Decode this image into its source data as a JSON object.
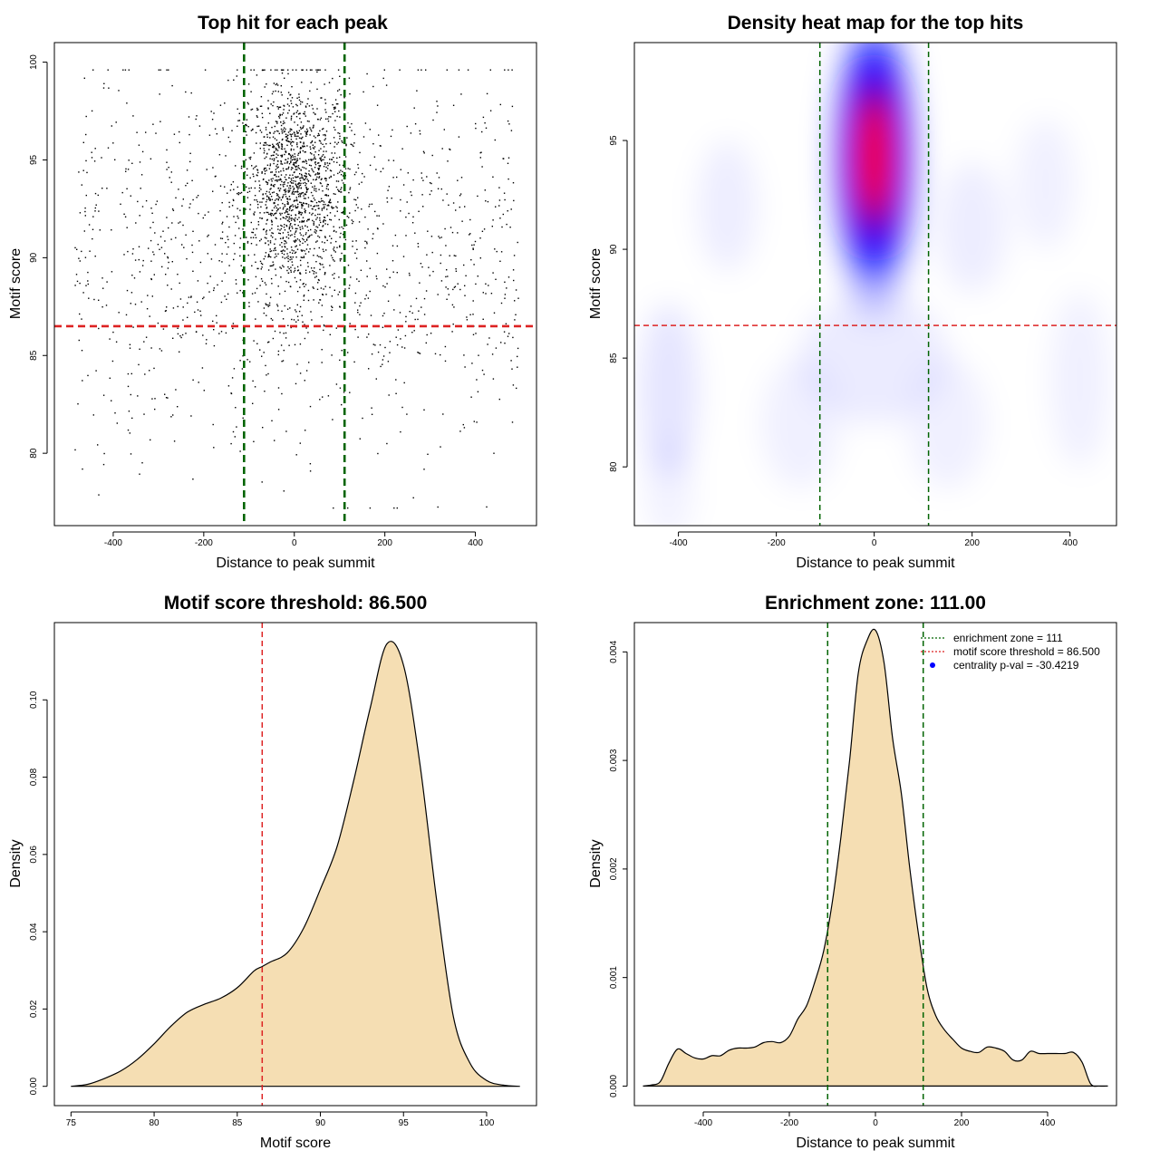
{
  "chart_data": [
    {
      "id": "scatter",
      "type": "scatter",
      "title": "Top hit for each peak",
      "xlabel": "Distance to peak summit",
      "ylabel": "Motif score",
      "xlim": [
        -530,
        535
      ],
      "ylim": [
        76.3,
        101.0
      ],
      "xticks": [
        -400,
        -200,
        0,
        200,
        400
      ],
      "yticks": [
        80,
        85,
        90,
        95,
        100
      ],
      "point_color": "#000000",
      "reference_lines": [
        {
          "orientation": "vertical",
          "value": -111,
          "color": "#006400",
          "style": "dashed"
        },
        {
          "orientation": "vertical",
          "value": 111,
          "color": "#006400",
          "style": "dashed"
        },
        {
          "orientation": "horizontal",
          "value": 86.5,
          "color": "#dd2222",
          "style": "dashed"
        }
      ],
      "distribution": {
        "count": 2600,
        "x_range": [
          -485,
          495
        ],
        "y_range": [
          77.2,
          99.6
        ],
        "core": {
          "x_mean": 0,
          "x_sd": 60,
          "y_mean": 93.5,
          "y_sd": 2.8,
          "weight": 0.58
        },
        "background": {
          "y_mean": 90,
          "y_sd": 5,
          "weight": 0.42
        }
      }
    },
    {
      "id": "heatmap",
      "type": "heatmap",
      "title": "Density heat map for the top hits",
      "xlabel": "Distance to peak summit",
      "ylabel": "Motif score",
      "xlim": [
        -490,
        495
      ],
      "ylim": [
        77.3,
        99.5
      ],
      "xticks": [
        -400,
        -200,
        0,
        200,
        400
      ],
      "yticks": [
        80,
        85,
        90,
        95
      ],
      "colors": {
        "low": "#ffffff",
        "mid": "#0000ff",
        "high": "#ff0000"
      },
      "peak": {
        "x": 0,
        "y": 94.2
      },
      "reference_lines": [
        {
          "orientation": "vertical",
          "value": -111,
          "color": "#006400",
          "style": "dashed"
        },
        {
          "orientation": "vertical",
          "value": 111,
          "color": "#006400",
          "style": "dashed"
        },
        {
          "orientation": "horizontal",
          "value": 86.5,
          "color": "#dd2222",
          "style": "dashed"
        }
      ]
    },
    {
      "id": "score_density",
      "type": "area",
      "title": "Motif score threshold: 86.500",
      "xlabel": "Motif score",
      "ylabel": "Density",
      "xlim": [
        74.0,
        103.0
      ],
      "ylim": [
        -0.005,
        0.12
      ],
      "xticks": [
        75,
        80,
        85,
        90,
        95,
        100
      ],
      "yticks": [
        0.0,
        0.02,
        0.04,
        0.06,
        0.08,
        0.1
      ],
      "ytick_labels": [
        "0.00",
        "0.02",
        "0.04",
        "0.06",
        "0.08",
        "0.10"
      ],
      "fill_color": "#f5deb3",
      "line_color": "#000000",
      "x": [
        75,
        76,
        77,
        78,
        79,
        80,
        81,
        82,
        83,
        84,
        85,
        86,
        86.5,
        87,
        88,
        89,
        90,
        91,
        92,
        93,
        94,
        95,
        96,
        97,
        98,
        99,
        100,
        101,
        102
      ],
      "y": [
        0.0,
        0.0005,
        0.002,
        0.004,
        0.007,
        0.011,
        0.0155,
        0.0192,
        0.0212,
        0.0228,
        0.0255,
        0.0298,
        0.031,
        0.0322,
        0.0345,
        0.041,
        0.051,
        0.062,
        0.079,
        0.098,
        0.1145,
        0.109,
        0.083,
        0.048,
        0.018,
        0.006,
        0.0015,
        0.0003,
        0.0
      ],
      "reference_lines": [
        {
          "orientation": "vertical",
          "value": 86.5,
          "color": "#dd2222",
          "style": "dashed"
        }
      ]
    },
    {
      "id": "distance_density",
      "type": "area",
      "title": "Enrichment zone: 111.00",
      "xlabel": "Distance to peak summit",
      "ylabel": "Density",
      "xlim": [
        -560,
        560
      ],
      "ylim": [
        -0.00018,
        0.00427
      ],
      "xticks": [
        -400,
        -200,
        0,
        200,
        400
      ],
      "yticks": [
        0.0,
        0.001,
        0.002,
        0.003,
        0.004
      ],
      "ytick_labels": [
        "0.000",
        "0.001",
        "0.002",
        "0.003",
        "0.004"
      ],
      "fill_color": "#f5deb3",
      "line_color": "#000000",
      "x": [
        -540,
        -520,
        -500,
        -480,
        -460,
        -440,
        -420,
        -400,
        -380,
        -360,
        -340,
        -320,
        -300,
        -280,
        -260,
        -240,
        -220,
        -200,
        -180,
        -160,
        -140,
        -120,
        -100,
        -80,
        -60,
        -40,
        -20,
        0,
        20,
        40,
        60,
        80,
        100,
        120,
        140,
        160,
        180,
        200,
        220,
        240,
        260,
        280,
        300,
        320,
        340,
        360,
        380,
        400,
        420,
        440,
        460,
        480,
        500,
        520,
        540
      ],
      "y": [
        0.0,
        1e-05,
        4e-05,
        0.00021,
        0.00034,
        0.0003,
        0.00026,
        0.00025,
        0.00028,
        0.00028,
        0.00033,
        0.00035,
        0.00035,
        0.00036,
        0.0004,
        0.00041,
        0.0004,
        0.00046,
        0.00062,
        0.00074,
        0.00097,
        0.00125,
        0.0017,
        0.0023,
        0.003,
        0.0038,
        0.0041,
        0.0042,
        0.0039,
        0.0032,
        0.0027,
        0.002,
        0.0014,
        0.0009,
        0.00065,
        0.00052,
        0.00043,
        0.00035,
        0.00032,
        0.00031,
        0.00036,
        0.00035,
        0.00032,
        0.00024,
        0.00024,
        0.00032,
        0.0003,
        0.0003,
        0.0003,
        0.0003,
        0.00031,
        0.00022,
        2e-05,
        0.0,
        0.0
      ],
      "reference_lines": [
        {
          "orientation": "vertical",
          "value": -111,
          "color": "#006400",
          "style": "dashed"
        },
        {
          "orientation": "vertical",
          "value": 111,
          "color": "#006400",
          "style": "dashed"
        }
      ],
      "legend": {
        "placement": "top-right",
        "entries": [
          {
            "label": "enrichment zone = 111",
            "color": "#006400",
            "kind": "dotted-line"
          },
          {
            "label": "motif score threshold = 86.500",
            "color": "#dd2222",
            "kind": "dotted-line"
          },
          {
            "label": "centrality p-val = -30.4219",
            "color": "#0000ff",
            "kind": "point"
          }
        ]
      }
    }
  ]
}
